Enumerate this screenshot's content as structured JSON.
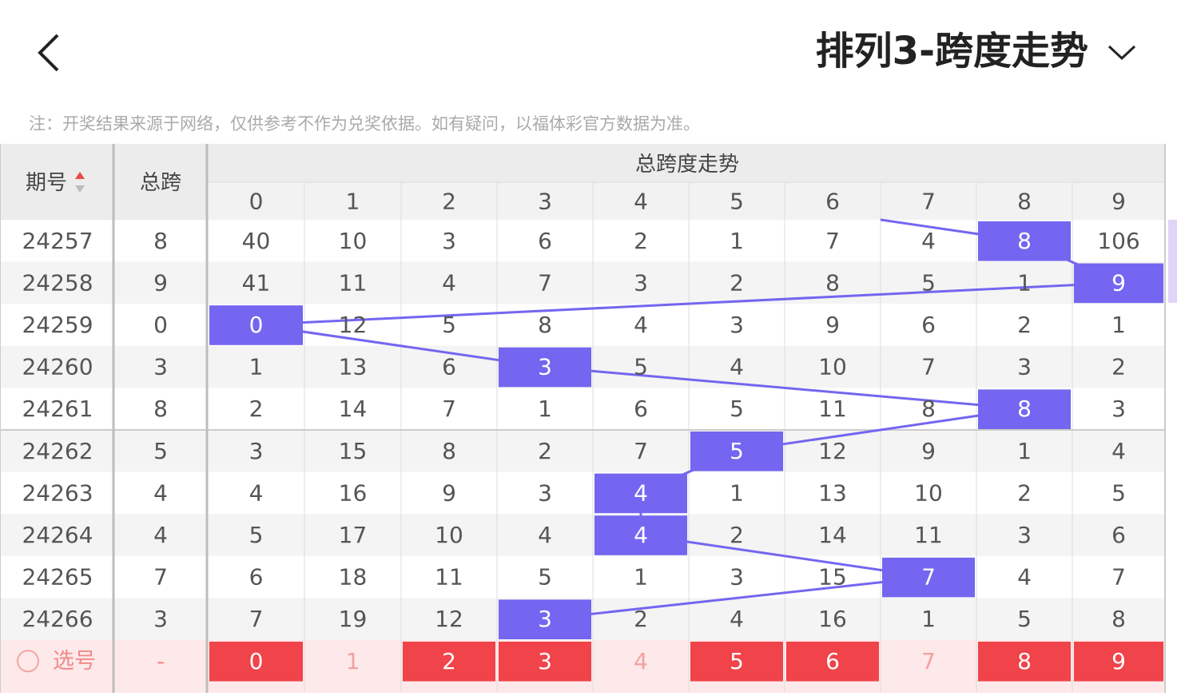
{
  "header": {
    "title": "排列3-跨度走势"
  },
  "note": "注：开奖结果来源于网络，仅供参考不作为兑奖依据。如有疑问，以福体彩官方数据为准。",
  "table": {
    "columns": {
      "period": "期号",
      "span": "总跨",
      "trend": "总跨度走势",
      "digits": [
        0,
        1,
        2,
        3,
        4,
        5,
        6,
        7,
        8,
        9
      ]
    },
    "rows": [
      {
        "period": 24257,
        "span": 8,
        "cells": [
          40,
          10,
          3,
          6,
          2,
          1,
          7,
          4,
          8,
          106
        ]
      },
      {
        "period": 24258,
        "span": 9,
        "cells": [
          41,
          11,
          4,
          7,
          3,
          2,
          8,
          5,
          1,
          9
        ]
      },
      {
        "period": 24259,
        "span": 0,
        "cells": [
          0,
          12,
          5,
          8,
          4,
          3,
          9,
          6,
          2,
          1
        ]
      },
      {
        "period": 24260,
        "span": 3,
        "cells": [
          1,
          13,
          6,
          3,
          5,
          4,
          10,
          7,
          3,
          2
        ]
      },
      {
        "period": 24261,
        "span": 8,
        "cells": [
          2,
          14,
          7,
          1,
          6,
          5,
          11,
          8,
          8,
          3
        ]
      },
      {
        "period": 24262,
        "span": 5,
        "cells": [
          3,
          15,
          8,
          2,
          7,
          5,
          12,
          9,
          1,
          4
        ]
      },
      {
        "period": 24263,
        "span": 4,
        "cells": [
          4,
          16,
          9,
          3,
          4,
          1,
          13,
          10,
          2,
          5
        ]
      },
      {
        "period": 24264,
        "span": 4,
        "cells": [
          5,
          17,
          10,
          4,
          4,
          2,
          14,
          11,
          3,
          6
        ]
      },
      {
        "period": 24265,
        "span": 7,
        "cells": [
          6,
          18,
          11,
          5,
          1,
          3,
          15,
          7,
          4,
          7
        ]
      },
      {
        "period": 24266,
        "span": 3,
        "cells": [
          7,
          19,
          12,
          3,
          2,
          4,
          16,
          1,
          5,
          8
        ]
      }
    ],
    "select_row": {
      "label": "选号",
      "span": "-",
      "digits": [
        {
          "text": 0,
          "selected": true
        },
        {
          "text": 1,
          "selected": false
        },
        {
          "text": 2,
          "selected": true
        },
        {
          "text": 3,
          "selected": true
        },
        {
          "text": 4,
          "selected": false
        },
        {
          "text": 5,
          "selected": true
        },
        {
          "text": 6,
          "selected": true
        },
        {
          "text": 7,
          "selected": false
        },
        {
          "text": 8,
          "selected": true
        },
        {
          "text": 9,
          "selected": true
        }
      ]
    }
  }
}
